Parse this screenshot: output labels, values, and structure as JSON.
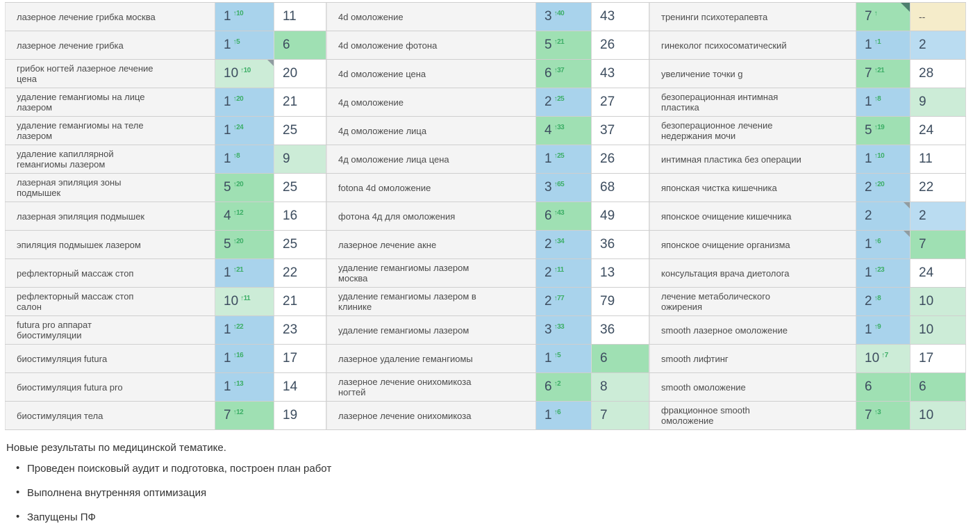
{
  "table": {
    "rows": [
      [
        {
          "kw": "лазерное лечение грибка москва",
          "pos": "1",
          "delta": "↑10",
          "pc": "blue",
          "num": "11",
          "nc": "white",
          "corner": false
        },
        {
          "kw": "4d омоложение",
          "pos": "3",
          "delta": "↑40",
          "pc": "blue",
          "num": "43",
          "nc": "white",
          "corner": false
        },
        {
          "kw": "тренинги психотерапевта",
          "pos": "7",
          "delta": "↑",
          "pc": "green",
          "num": "--",
          "nc": "beige",
          "corner": "dark"
        }
      ],
      [
        {
          "kw": "лазерное лечение грибка",
          "pos": "1",
          "delta": "↑5",
          "pc": "blue",
          "num": "6",
          "nc": "green",
          "corner": false
        },
        {
          "kw": "4d омоложение фотона",
          "pos": "5",
          "delta": "↑21",
          "pc": "green",
          "num": "26",
          "nc": "white",
          "corner": false
        },
        {
          "kw": "гинеколог психосоматический",
          "pos": "1",
          "delta": "↑1",
          "pc": "blue",
          "num": "2",
          "nc": "lblue",
          "corner": false
        }
      ],
      [
        {
          "kw": "грибок ногтей лазерное лечение цена",
          "pos": "10",
          "delta": "↑10",
          "pc": "lgreen",
          "num": "20",
          "nc": "white",
          "corner": "gray"
        },
        {
          "kw": "4d омоложение цена",
          "pos": "6",
          "delta": "↑37",
          "pc": "green",
          "num": "43",
          "nc": "white",
          "corner": false
        },
        {
          "kw": "увеличение точки g",
          "pos": "7",
          "delta": "↑21",
          "pc": "green",
          "num": "28",
          "nc": "white",
          "corner": false
        }
      ],
      [
        {
          "kw": "удаление гемангиомы на лице лазером",
          "pos": "1",
          "delta": "↑20",
          "pc": "blue",
          "num": "21",
          "nc": "white",
          "corner": false
        },
        {
          "kw": "4д омоложение",
          "pos": "2",
          "delta": "↑25",
          "pc": "blue",
          "num": "27",
          "nc": "white",
          "corner": false
        },
        {
          "kw": "безоперационная интимная пластика",
          "pos": "1",
          "delta": "↑8",
          "pc": "blue",
          "num": "9",
          "nc": "lgreen",
          "corner": false
        }
      ],
      [
        {
          "kw": "удаление гемангиомы на теле лазером",
          "pos": "1",
          "delta": "↑24",
          "pc": "blue",
          "num": "25",
          "nc": "white",
          "corner": false
        },
        {
          "kw": "4д омоложение лица",
          "pos": "4",
          "delta": "↑33",
          "pc": "green",
          "num": "37",
          "nc": "white",
          "corner": false
        },
        {
          "kw": "безоперационное лечение недержания мочи",
          "pos": "5",
          "delta": "↑19",
          "pc": "green",
          "num": "24",
          "nc": "white",
          "corner": false
        }
      ],
      [
        {
          "kw": "удаление капиллярной гемангиомы лазером",
          "pos": "1",
          "delta": "↑8",
          "pc": "blue",
          "num": "9",
          "nc": "lgreen",
          "corner": false
        },
        {
          "kw": "4д омоложение лица цена",
          "pos": "1",
          "delta": "↑25",
          "pc": "blue",
          "num": "26",
          "nc": "white",
          "corner": false
        },
        {
          "kw": "интимная пластика без операции",
          "pos": "1",
          "delta": "↑10",
          "pc": "blue",
          "num": "11",
          "nc": "white",
          "corner": false
        }
      ],
      [
        {
          "kw": "лазерная эпиляция зоны подмышек",
          "pos": "5",
          "delta": "↑20",
          "pc": "green",
          "num": "25",
          "nc": "white",
          "corner": false
        },
        {
          "kw": "fotona 4d омоложение",
          "pos": "3",
          "delta": "↑65",
          "pc": "blue",
          "num": "68",
          "nc": "white",
          "corner": false
        },
        {
          "kw": "японская чистка кишечника",
          "pos": "2",
          "delta": "↑20",
          "pc": "blue",
          "num": "22",
          "nc": "white",
          "corner": false
        }
      ],
      [
        {
          "kw": "лазерная эпиляция подмышек",
          "pos": "4",
          "delta": "↑12",
          "pc": "green",
          "num": "16",
          "nc": "white",
          "corner": false
        },
        {
          "kw": "фотона 4д для омоложения",
          "pos": "6",
          "delta": "↑43",
          "pc": "green",
          "num": "49",
          "nc": "white",
          "corner": false
        },
        {
          "kw": "японское очищение кишечника",
          "pos": "2",
          "delta": "",
          "pc": "blue",
          "num": "2",
          "nc": "lblue",
          "corner": "gray"
        }
      ],
      [
        {
          "kw": "эпиляция подмышек лазером",
          "pos": "5",
          "delta": "↑20",
          "pc": "green",
          "num": "25",
          "nc": "white",
          "corner": false
        },
        {
          "kw": "лазерное лечение акне",
          "pos": "2",
          "delta": "↑34",
          "pc": "blue",
          "num": "36",
          "nc": "white",
          "corner": false
        },
        {
          "kw": "японское очищение организма",
          "pos": "1",
          "delta": "↑6",
          "pc": "blue",
          "num": "7",
          "nc": "green",
          "corner": "gray"
        }
      ],
      [
        {
          "kw": "рефлекторный массаж стоп",
          "pos": "1",
          "delta": "↑21",
          "pc": "blue",
          "num": "22",
          "nc": "white",
          "corner": false
        },
        {
          "kw": "удаление гемангиомы лазером москва",
          "pos": "2",
          "delta": "↑11",
          "pc": "blue",
          "num": "13",
          "nc": "white",
          "corner": false
        },
        {
          "kw": "консультация врача диетолога",
          "pos": "1",
          "delta": "↑23",
          "pc": "blue",
          "num": "24",
          "nc": "white",
          "corner": false
        }
      ],
      [
        {
          "kw": "рефлекторный массаж стоп салон",
          "pos": "10",
          "delta": "↑11",
          "pc": "lgreen",
          "num": "21",
          "nc": "white",
          "corner": false
        },
        {
          "kw": "удаление гемангиомы лазером в клинике",
          "pos": "2",
          "delta": "↑77",
          "pc": "blue",
          "num": "79",
          "nc": "white",
          "corner": false
        },
        {
          "kw": "лечение метаболического ожирения",
          "pos": "2",
          "delta": "↑8",
          "pc": "blue",
          "num": "10",
          "nc": "lgreen",
          "corner": false
        }
      ],
      [
        {
          "kw": "futura pro аппарат биостимуляции",
          "pos": "1",
          "delta": "↑22",
          "pc": "blue",
          "num": "23",
          "nc": "white",
          "corner": false
        },
        {
          "kw": "удаление гемангиомы лазером",
          "pos": "3",
          "delta": "↑33",
          "pc": "blue",
          "num": "36",
          "nc": "white",
          "corner": false
        },
        {
          "kw": "smooth лазерное омоложение",
          "pos": "1",
          "delta": "↑9",
          "pc": "blue",
          "num": "10",
          "nc": "lgreen",
          "corner": false
        }
      ],
      [
        {
          "kw": "биостимуляция futura",
          "pos": "1",
          "delta": "↑16",
          "pc": "blue",
          "num": "17",
          "nc": "white",
          "corner": false
        },
        {
          "kw": "лазерное удаление гемангиомы",
          "pos": "1",
          "delta": "↑5",
          "pc": "blue",
          "num": "6",
          "nc": "green",
          "corner": false
        },
        {
          "kw": "smooth лифтинг",
          "pos": "10",
          "delta": "↑7",
          "pc": "lgreen",
          "num": "17",
          "nc": "white",
          "corner": false
        }
      ],
      [
        {
          "kw": "биостимуляция futura pro",
          "pos": "1",
          "delta": "↑13",
          "pc": "blue",
          "num": "14",
          "nc": "white",
          "corner": false
        },
        {
          "kw": "лазерное лечение онихомикоза ногтей",
          "pos": "6",
          "delta": "↑2",
          "pc": "green",
          "num": "8",
          "nc": "lgreen",
          "corner": false
        },
        {
          "kw": "smooth омоложение",
          "pos": "6",
          "delta": "",
          "pc": "green",
          "num": "6",
          "nc": "green",
          "corner": false
        }
      ],
      [
        {
          "kw": "биостимуляция тела",
          "pos": "7",
          "delta": "↑12",
          "pc": "green",
          "num": "19",
          "nc": "white",
          "corner": false
        },
        {
          "kw": "лазерное лечение онихомикоза",
          "pos": "1",
          "delta": "↑6",
          "pc": "blue",
          "num": "7",
          "nc": "lgreen",
          "corner": false
        },
        {
          "kw": "фракционное smooth омоложение",
          "pos": "7",
          "delta": "↑3",
          "pc": "green",
          "num": "10",
          "nc": "lgreen",
          "corner": false
        }
      ]
    ]
  },
  "colors": {
    "position_top3_bg": "#a9d3ec",
    "position_top10_bg": "#9fe0b3",
    "position_10_bg": "#ccecd7",
    "prev_blue_bg": "#badcf1",
    "no_data_bg": "#f5ecca",
    "delta_up": "#3cae66",
    "keyword_bg": "#f4f4f4",
    "number_text": "#3d4d5f"
  },
  "footer": {
    "intro": "Новые результаты по медицинской тематике.",
    "bullets": [
      "Проведен поисковый аудит и подготовка, построен план работ",
      "Выполнена внутренняя оптимизация",
      "Запущены ПФ"
    ]
  }
}
